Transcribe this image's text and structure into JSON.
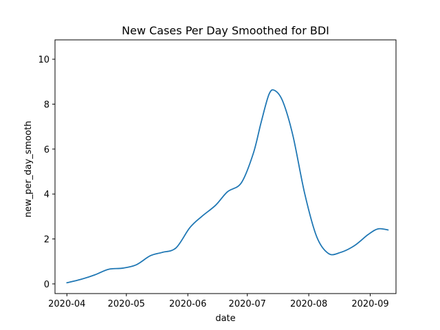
{
  "chart_data": {
    "type": "line",
    "title": "New Cases Per Day Smoothed for BDI",
    "xlabel": "date",
    "ylabel": "new_per_day_smooth",
    "xlim": [
      "2020-03-26",
      "2020-09-14"
    ],
    "ylim": [
      -0.43,
      10.86
    ],
    "x_ticks": [
      "2020-04-01",
      "2020-05-01",
      "2020-06-01",
      "2020-07-01",
      "2020-08-01",
      "2020-09-01"
    ],
    "x_tick_labels": [
      "2020-04",
      "2020-05",
      "2020-06",
      "2020-07",
      "2020-08",
      "2020-09"
    ],
    "y_ticks": [
      0,
      2,
      4,
      6,
      8,
      10
    ],
    "y_tick_labels": [
      "0",
      "2",
      "4",
      "6",
      "8",
      "10"
    ],
    "grid": false,
    "series": [
      {
        "color": "#1f77b4",
        "x": [
          "2020-04-01",
          "2020-04-08",
          "2020-04-15",
          "2020-04-22",
          "2020-04-29",
          "2020-05-06",
          "2020-05-13",
          "2020-05-19",
          "2020-05-26",
          "2020-06-02",
          "2020-06-08",
          "2020-06-15",
          "2020-06-21",
          "2020-06-28",
          "2020-07-04",
          "2020-07-08",
          "2020-07-12",
          "2020-07-15",
          "2020-07-19",
          "2020-07-24",
          "2020-07-30",
          "2020-08-05",
          "2020-08-11",
          "2020-08-17",
          "2020-08-24",
          "2020-08-31",
          "2020-09-05",
          "2020-09-10"
        ],
        "y": [
          0.05,
          0.2,
          0.4,
          0.65,
          0.7,
          0.85,
          1.25,
          1.4,
          1.6,
          2.5,
          3.0,
          3.5,
          4.1,
          4.5,
          5.8,
          7.2,
          8.45,
          8.6,
          8.1,
          6.6,
          4.0,
          2.1,
          1.35,
          1.4,
          1.7,
          2.2,
          2.45,
          2.4
        ]
      }
    ]
  }
}
